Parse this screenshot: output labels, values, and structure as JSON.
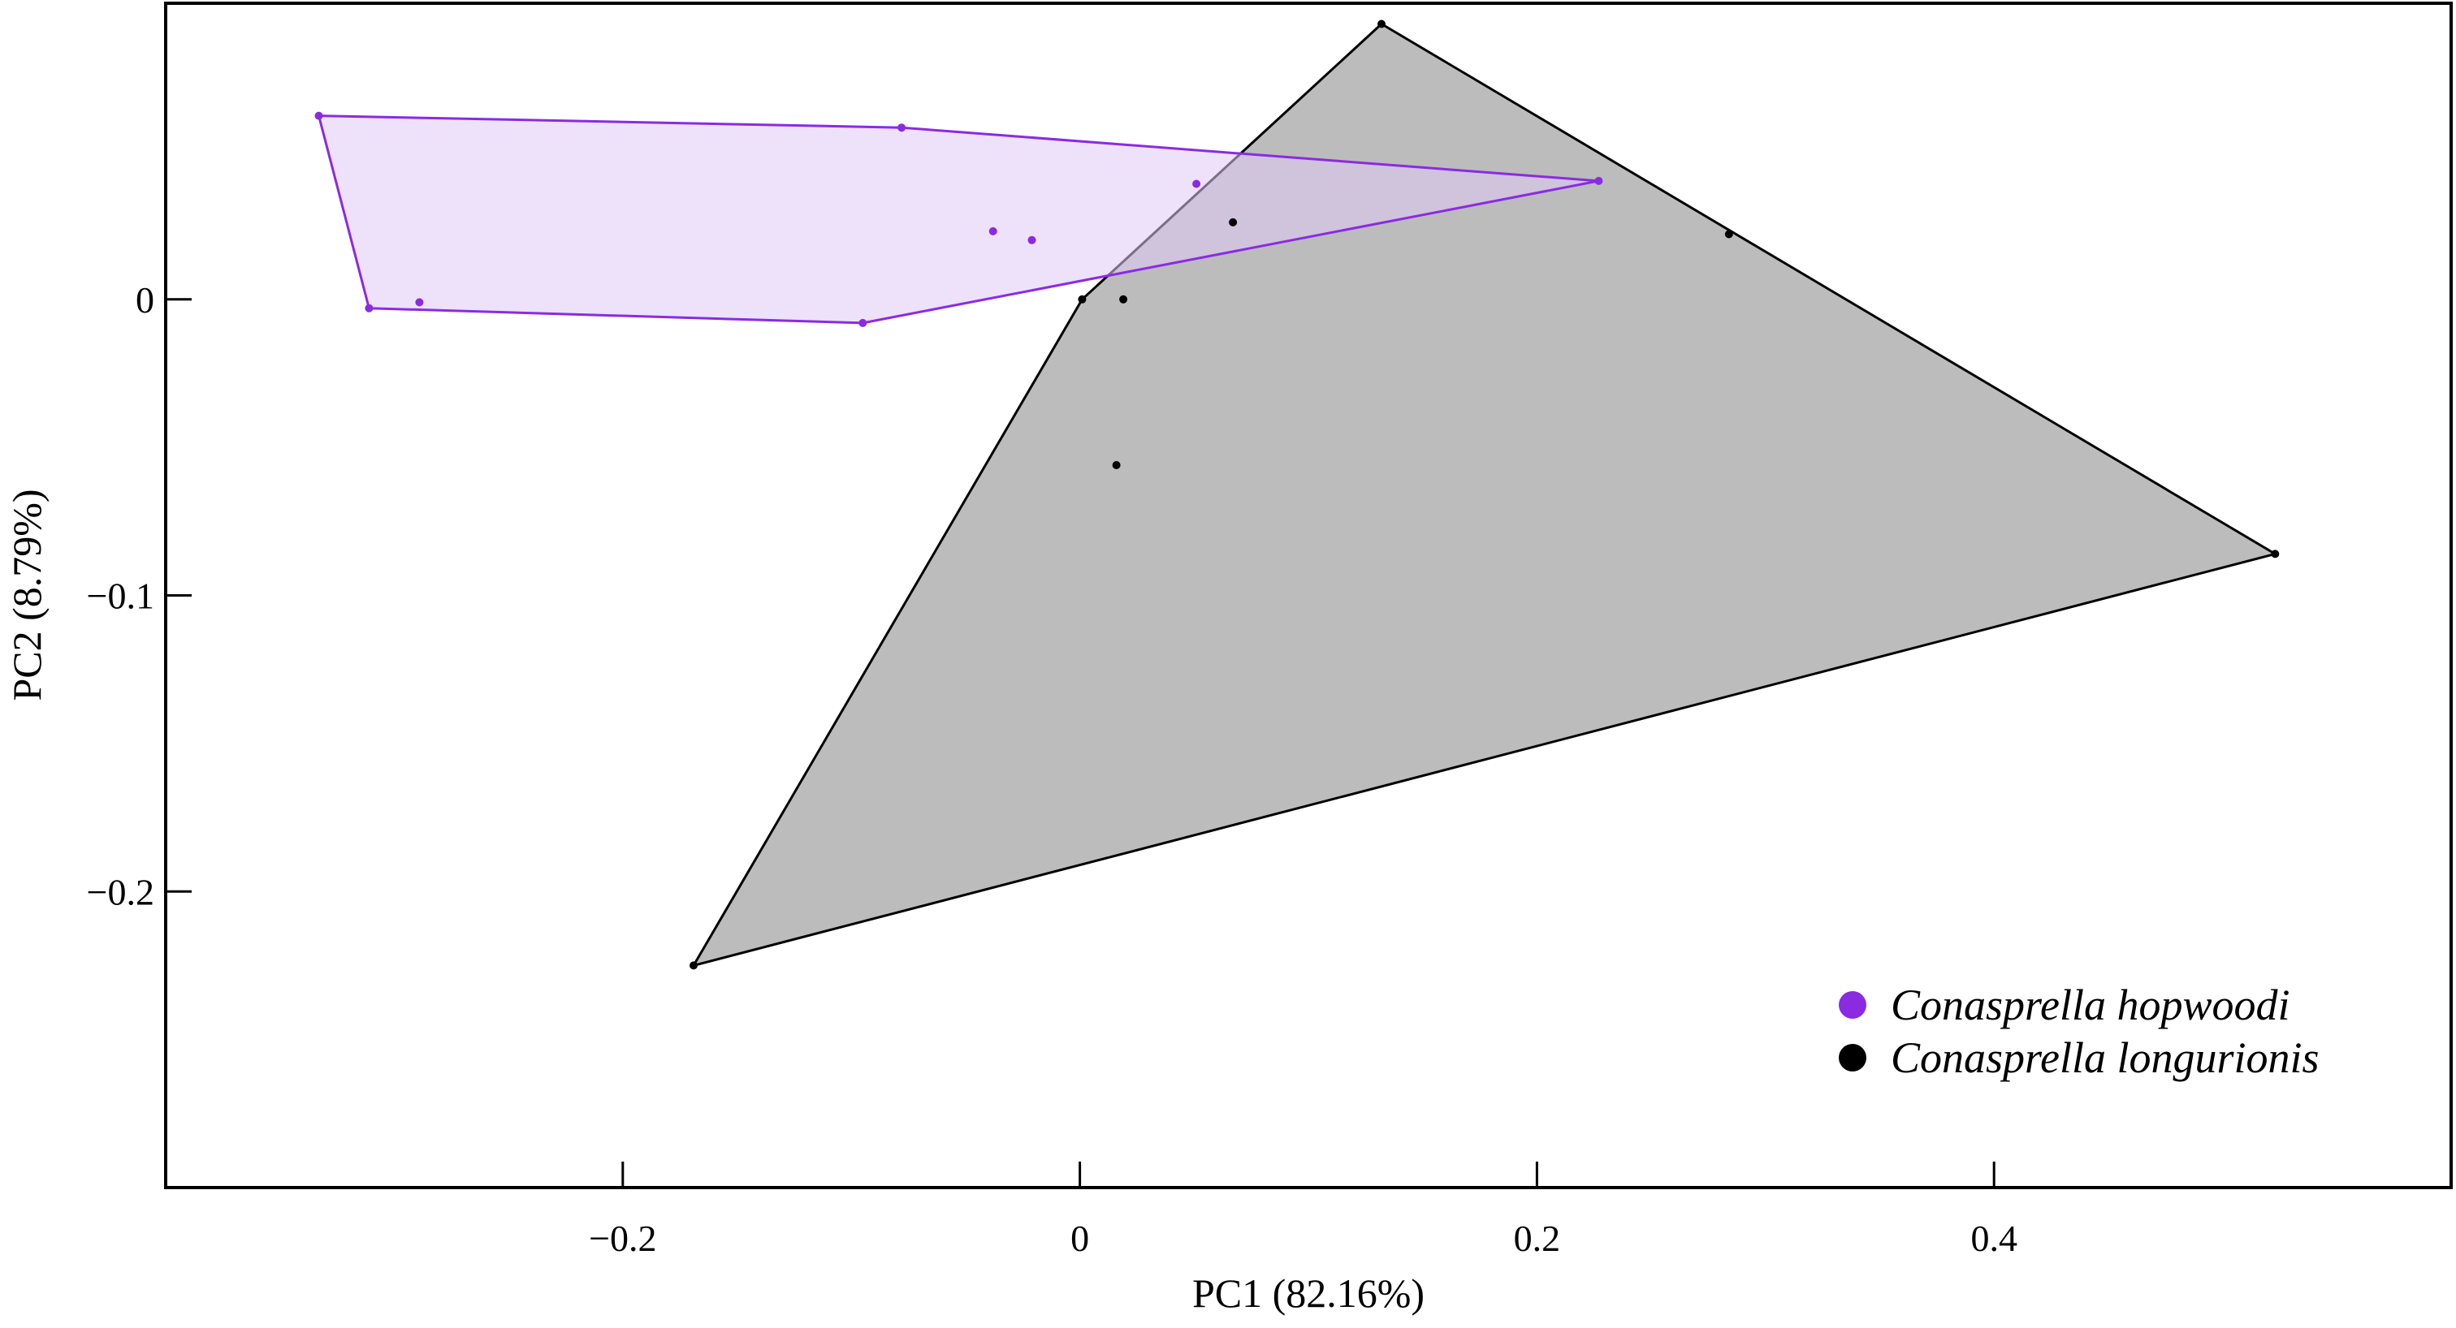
{
  "chart_data": {
    "type": "scatter",
    "title": "",
    "xlabel": "PC1 (82.16%)",
    "ylabel": "PC2 (8.79%)",
    "xlim": [
      -0.4,
      0.6
    ],
    "ylim": [
      -0.3,
      0.1
    ],
    "xticks": [
      -0.2,
      0,
      0.2,
      0.4
    ],
    "yticks": [
      0,
      -0.1,
      -0.2
    ],
    "xtick_labels": [
      "−0.2",
      "0",
      "0.2",
      "0.4"
    ],
    "ytick_labels": [
      "0",
      "−0.1",
      "−0.2"
    ],
    "grid": false,
    "legend_position": "bottom-right",
    "series": [
      {
        "name": "Conasprella hopwoodi",
        "color": "#8a2be2",
        "fill": "#e0c8f5",
        "points": [
          [
            -0.333,
            0.062
          ],
          [
            -0.078,
            0.058
          ],
          [
            0.227,
            0.04
          ],
          [
            0.051,
            0.039
          ],
          [
            -0.038,
            0.023
          ],
          [
            -0.021,
            0.02
          ],
          [
            -0.311,
            -0.003
          ],
          [
            -0.289,
            -0.001
          ],
          [
            -0.095,
            -0.008
          ]
        ],
        "hull": [
          [
            -0.333,
            0.062
          ],
          [
            -0.078,
            0.058
          ],
          [
            0.227,
            0.04
          ],
          [
            -0.095,
            -0.008
          ],
          [
            -0.311,
            -0.003
          ]
        ]
      },
      {
        "name": "Conasprella longurionis",
        "color": "#000000",
        "fill": "#a0a0a0",
        "points": [
          [
            0.132,
            0.093
          ],
          [
            0.067,
            0.026
          ],
          [
            0.284,
            0.022
          ],
          [
            0.001,
            0.0
          ],
          [
            0.019,
            0.0
          ],
          [
            0.016,
            -0.056
          ],
          [
            0.523,
            -0.086
          ],
          [
            -0.169,
            -0.225
          ]
        ],
        "hull": [
          [
            0.132,
            0.093
          ],
          [
            0.523,
            -0.086
          ],
          [
            -0.169,
            -0.225
          ],
          [
            0.001,
            0.0
          ]
        ]
      }
    ]
  }
}
